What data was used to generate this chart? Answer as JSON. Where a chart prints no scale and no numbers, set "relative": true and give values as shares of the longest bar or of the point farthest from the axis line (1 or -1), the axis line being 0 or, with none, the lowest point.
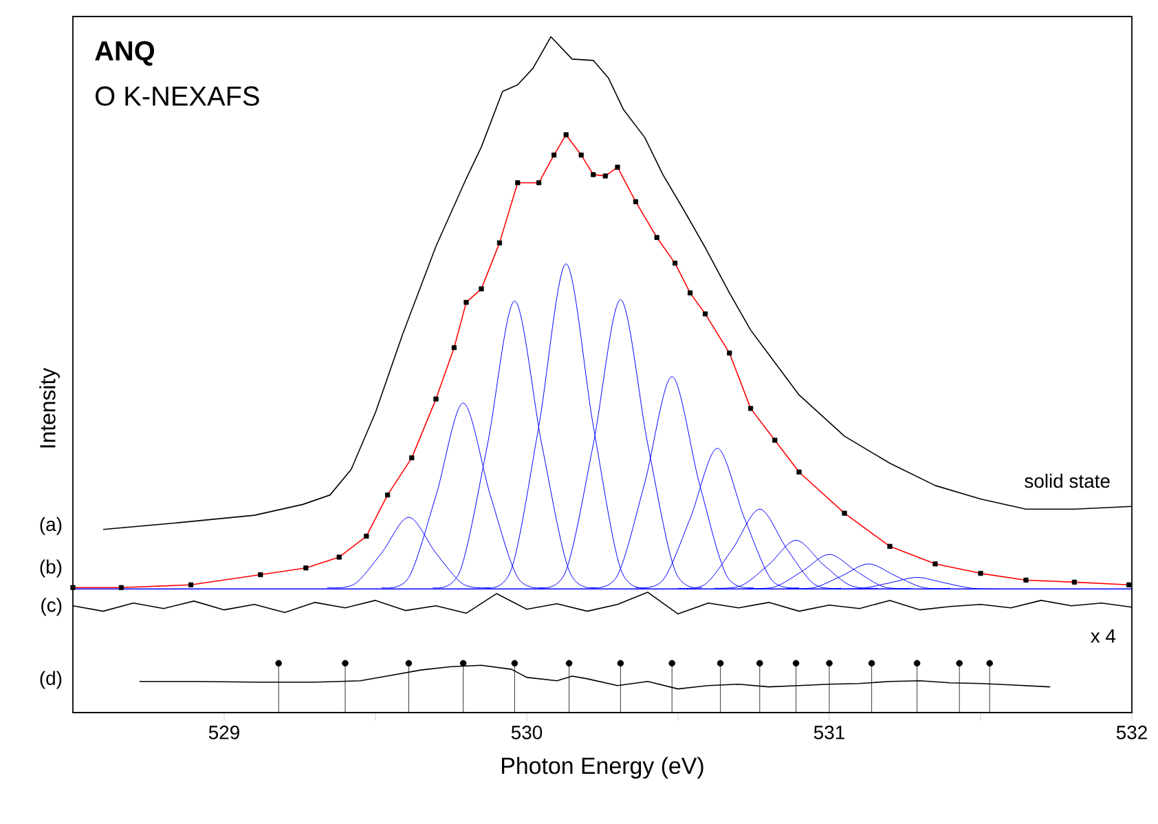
{
  "chart_data": {
    "type": "line",
    "title": "ANQ",
    "subtitle": "O K-NEXAFS",
    "xlabel": "Photon Energy (eV)",
    "ylabel": "Intensity",
    "relative": true,
    "xlim": [
      528.5,
      532
    ],
    "xticks": [
      529,
      {
        "value": 529.5,
        "label": null
      },
      530,
      {
        "value": 530.5,
        "label": null
      },
      531,
      {
        "value": 531.5,
        "label": null
      },
      532
    ],
    "annotations": [
      "(a)",
      "(b)",
      "(c)",
      "(d)",
      "x 4"
    ],
    "series": [
      {
        "name": "solid state",
        "type": "line",
        "color": "#000000",
        "x": [
          528.6,
          528.85,
          529.1,
          529.26,
          529.35,
          529.42,
          529.5,
          529.59,
          529.7,
          529.8,
          529.85,
          529.92,
          529.97,
          530.02,
          530.08,
          530.15,
          530.22,
          530.27,
          530.32,
          530.39,
          530.45,
          530.52,
          530.59,
          530.67,
          530.74,
          530.9,
          531.05,
          531.2,
          531.35,
          531.5,
          531.65,
          531.81,
          532.0
        ],
        "values": [
          0.271,
          0.281,
          0.292,
          0.308,
          0.322,
          0.36,
          0.444,
          0.56,
          0.69,
          0.79,
          0.837,
          0.919,
          0.929,
          0.953,
          1.0,
          0.967,
          0.965,
          0.939,
          0.892,
          0.851,
          0.796,
          0.743,
          0.688,
          0.621,
          0.566,
          0.47,
          0.409,
          0.369,
          0.336,
          0.316,
          0.301,
          0.301,
          0.305
        ]
      },
      {
        "type": "line",
        "color": "#0000ff",
        "x": [
          528.5,
          532.0
        ],
        "values": [
          0.183,
          0.183
        ]
      },
      {
        "type": "line",
        "color": "#0000ff",
        "x": [
          529.34,
          529.43,
          529.52,
          529.61,
          529.7,
          529.79,
          529.88
        ],
        "values": [
          0.185,
          0.19,
          0.236,
          0.289,
          0.236,
          0.19,
          0.185
        ]
      },
      {
        "type": "line",
        "color": "#0000ff",
        "x": [
          529.52,
          529.61,
          529.7,
          529.79,
          529.88,
          529.97,
          530.06
        ],
        "values": [
          0.185,
          0.2,
          0.321,
          0.458,
          0.321,
          0.2,
          0.185
        ]
      },
      {
        "type": "line",
        "color": "#0000ff",
        "x": [
          529.69,
          529.78,
          529.87,
          529.96,
          530.05,
          530.14,
          530.23
        ],
        "values": [
          0.185,
          0.21,
          0.396,
          0.609,
          0.396,
          0.21,
          0.185
        ]
      },
      {
        "type": "line",
        "color": "#0000ff",
        "x": [
          529.86,
          529.95,
          530.04,
          530.13,
          530.22,
          530.31,
          530.4
        ],
        "values": [
          0.185,
          0.213,
          0.424,
          0.664,
          0.424,
          0.213,
          0.185
        ]
      },
      {
        "type": "line",
        "color": "#0000ff",
        "x": [
          530.04,
          530.13,
          530.22,
          530.31,
          530.4,
          530.49,
          530.58
        ],
        "values": [
          0.185,
          0.21,
          0.397,
          0.611,
          0.397,
          0.21,
          0.185
        ]
      },
      {
        "type": "line",
        "color": "#0000ff",
        "x": [
          530.21,
          530.3,
          530.39,
          530.48,
          530.57,
          530.66,
          530.75
        ],
        "values": [
          0.185,
          0.203,
          0.34,
          0.497,
          0.34,
          0.203,
          0.185
        ]
      },
      {
        "type": "line",
        "color": "#0000ff",
        "x": [
          530.36,
          530.45,
          530.54,
          530.63,
          530.72,
          530.81,
          530.9
        ],
        "values": [
          0.185,
          0.196,
          0.287,
          0.391,
          0.287,
          0.196,
          0.185
        ]
      },
      {
        "type": "line",
        "color": "#0000ff",
        "x": [
          530.5,
          530.59,
          530.68,
          530.77,
          530.86,
          530.95,
          531.04
        ],
        "values": [
          0.184,
          0.19,
          0.242,
          0.301,
          0.242,
          0.19,
          0.184
        ]
      },
      {
        "type": "line",
        "color": "#0000ff",
        "x": [
          530.62,
          530.71,
          530.8,
          530.89,
          530.98,
          531.07,
          531.16
        ],
        "values": [
          0.184,
          0.188,
          0.219,
          0.255,
          0.219,
          0.188,
          0.184
        ]
      },
      {
        "type": "line",
        "color": "#0000ff",
        "x": [
          530.73,
          530.82,
          530.91,
          531.0,
          531.09,
          531.18,
          531.27
        ],
        "values": [
          0.184,
          0.186,
          0.209,
          0.234,
          0.209,
          0.186,
          0.184
        ]
      },
      {
        "type": "line",
        "color": "#0000ff",
        "x": [
          530.86,
          530.95,
          531.04,
          531.13,
          531.22,
          531.31,
          531.4
        ],
        "values": [
          0.184,
          0.185,
          0.202,
          0.22,
          0.202,
          0.185,
          0.184
        ]
      },
      {
        "type": "line",
        "color": "#0000ff",
        "x": [
          531.02,
          531.11,
          531.2,
          531.29,
          531.38,
          531.47,
          531.56
        ],
        "values": [
          0.183,
          0.184,
          0.192,
          0.2,
          0.192,
          0.184,
          0.183
        ]
      },
      {
        "type": "line",
        "color": "#ff0000",
        "x": [
          528.5,
          528.66,
          528.89,
          529.12,
          529.27,
          529.38,
          529.47,
          529.54,
          529.62,
          529.7,
          529.76,
          529.8,
          529.85,
          529.91,
          529.97,
          530.04,
          530.09,
          530.13,
          530.18,
          530.22,
          530.26,
          530.3,
          530.36,
          530.43,
          530.49,
          530.54,
          530.59,
          530.67,
          530.74,
          530.82,
          530.9,
          531.05,
          531.2,
          531.35,
          531.5,
          531.65,
          531.81,
          531.99
        ],
        "values": [
          0.185,
          0.185,
          0.189,
          0.204,
          0.214,
          0.23,
          0.261,
          0.322,
          0.377,
          0.464,
          0.54,
          0.607,
          0.627,
          0.695,
          0.784,
          0.784,
          0.825,
          0.855,
          0.825,
          0.796,
          0.794,
          0.807,
          0.756,
          0.703,
          0.665,
          0.621,
          0.59,
          0.532,
          0.45,
          0.403,
          0.356,
          0.295,
          0.246,
          0.22,
          0.206,
          0.196,
          0.193,
          0.189
        ]
      },
      {
        "type": "scatter",
        "marker": "square",
        "color": "#000000",
        "x": [
          528.5,
          528.66,
          528.89,
          529.12,
          529.27,
          529.38,
          529.47,
          529.54,
          529.62,
          529.7,
          529.76,
          529.8,
          529.85,
          529.91,
          529.97,
          530.04,
          530.09,
          530.13,
          530.18,
          530.22,
          530.26,
          530.3,
          530.36,
          530.43,
          530.49,
          530.54,
          530.59,
          530.67,
          530.74,
          530.82,
          530.9,
          531.05,
          531.2,
          531.35,
          531.5,
          531.65,
          531.81,
          531.99
        ],
        "values": [
          0.185,
          0.185,
          0.189,
          0.204,
          0.214,
          0.23,
          0.261,
          0.322,
          0.377,
          0.464,
          0.54,
          0.607,
          0.627,
          0.695,
          0.784,
          0.784,
          0.825,
          0.855,
          0.825,
          0.796,
          0.794,
          0.807,
          0.756,
          0.703,
          0.665,
          0.621,
          0.59,
          0.532,
          0.45,
          0.403,
          0.356,
          0.295,
          0.246,
          0.22,
          0.206,
          0.196,
          0.193,
          0.189
        ]
      },
      {
        "type": "line",
        "color": "#000000",
        "x": [
          528.5,
          528.6,
          528.7,
          528.8,
          528.9,
          529.0,
          529.1,
          529.2,
          529.3,
          529.4,
          529.5,
          529.6,
          529.7,
          529.8,
          529.9,
          530.0,
          530.1,
          530.2,
          530.3,
          530.4,
          530.5,
          530.6,
          530.7,
          530.8,
          530.9,
          531.0,
          531.1,
          531.2,
          531.3,
          531.4,
          531.5,
          531.6,
          531.7,
          531.8,
          531.9,
          532.0
        ],
        "values": [
          0.158,
          0.15,
          0.162,
          0.154,
          0.165,
          0.152,
          0.16,
          0.148,
          0.163,
          0.155,
          0.166,
          0.151,
          0.158,
          0.147,
          0.176,
          0.153,
          0.161,
          0.15,
          0.16,
          0.178,
          0.146,
          0.162,
          0.155,
          0.163,
          0.15,
          0.159,
          0.154,
          0.166,
          0.152,
          0.157,
          0.16,
          0.155,
          0.166,
          0.158,
          0.162,
          0.156
        ]
      },
      {
        "type": "line",
        "color": "#000000",
        "x": [
          528.72,
          528.9,
          529.1,
          529.3,
          529.45,
          529.55,
          529.65,
          529.75,
          529.85,
          529.95,
          530.0,
          530.1,
          530.15,
          530.2,
          530.3,
          530.4,
          530.5,
          530.6,
          530.7,
          530.8,
          530.9,
          531.0,
          531.1,
          531.2,
          531.3,
          531.4,
          531.5,
          531.6,
          531.73
        ],
        "values": [
          0.046,
          0.046,
          0.045,
          0.045,
          0.047,
          0.055,
          0.063,
          0.068,
          0.07,
          0.064,
          0.052,
          0.047,
          0.054,
          0.05,
          0.04,
          0.046,
          0.035,
          0.04,
          0.042,
          0.038,
          0.04,
          0.042,
          0.043,
          0.046,
          0.047,
          0.044,
          0.043,
          0.041,
          0.038
        ]
      },
      {
        "type": "lollipop",
        "marker": "circle",
        "color": "#000000",
        "x": [
          529.18,
          529.4,
          529.61,
          529.79,
          529.96,
          530.14,
          530.31,
          530.48,
          530.64,
          530.77,
          530.89,
          531.0,
          531.14,
          531.29,
          531.43,
          531.53
        ],
        "values": [
          0.073,
          0.073,
          0.073,
          0.073,
          0.073,
          0.073,
          0.073,
          0.073,
          0.073,
          0.073,
          0.073,
          0.073,
          0.073,
          0.073,
          0.073,
          0.073
        ]
      }
    ]
  }
}
